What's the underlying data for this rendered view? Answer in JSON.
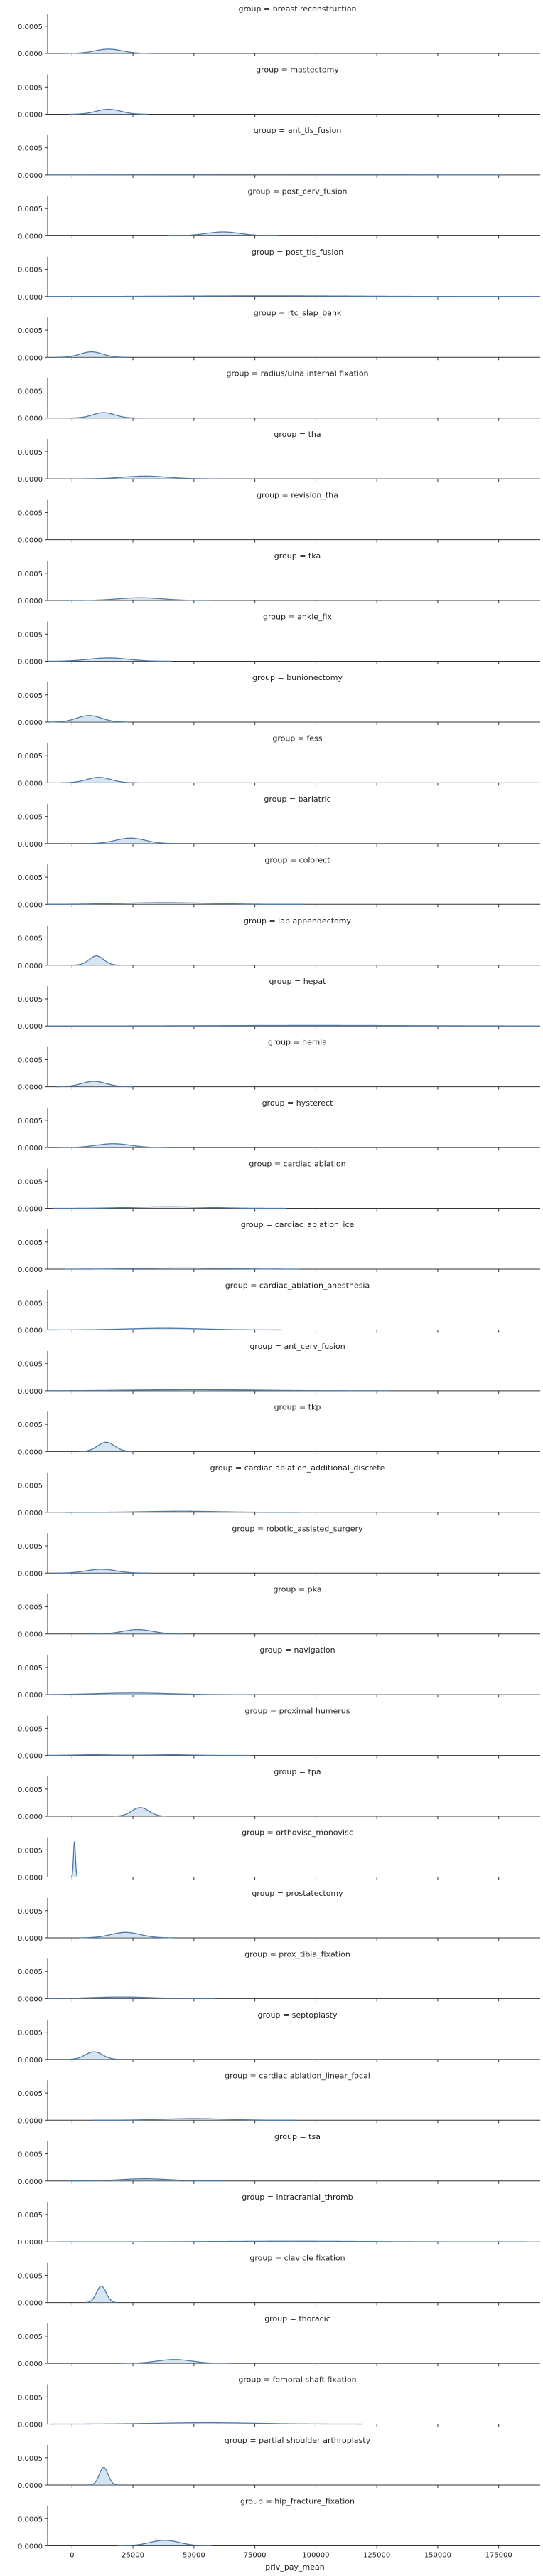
{
  "chart_data": {
    "type": "area",
    "xlabel": "priv_pay_mean",
    "xlim": [
      -10000,
      192000
    ],
    "ylim": [
      0,
      0.00072
    ],
    "x_ticks": [
      0,
      25000,
      50000,
      75000,
      100000,
      125000,
      150000,
      175000
    ],
    "x_tick_labels": [
      "0",
      "25000",
      "50000",
      "75000",
      "100000",
      "125000",
      "150000",
      "175000"
    ],
    "y_ticks": [
      0,
      0.0005
    ],
    "y_tick_labels": [
      "0.0000",
      "0.0005"
    ],
    "line_color": "#4c79a8",
    "fill_color": "#a6c4e3",
    "facets": [
      {
        "title": "group = breast reconstruction",
        "peaks": [
          {
            "mu": 15000,
            "sigma": 5500,
            "h": 8e-05
          }
        ]
      },
      {
        "title": "group = mastectomy",
        "peaks": [
          {
            "mu": 15000,
            "sigma": 5000,
            "h": 9e-05
          }
        ]
      },
      {
        "title": "group = ant_tls_fusion",
        "peaks": [
          {
            "mu": 80000,
            "sigma": 30000,
            "h": 1.5e-05
          }
        ]
      },
      {
        "title": "group = post_cerv_fusion",
        "peaks": [
          {
            "mu": 62000,
            "sigma": 7000,
            "h": 7e-05
          }
        ]
      },
      {
        "title": "group = post_tls_fusion",
        "peaks": [
          {
            "mu": 80000,
            "sigma": 35000,
            "h": 1.2e-05
          }
        ]
      },
      {
        "title": "group = rtc_slap_bank",
        "peaks": [
          {
            "mu": 8000,
            "sigma": 4500,
            "h": 0.0001
          }
        ]
      },
      {
        "title": "group = radius/ulna internal fixation",
        "peaks": [
          {
            "mu": 13000,
            "sigma": 4500,
            "h": 0.0001
          }
        ]
      },
      {
        "title": "group = tha",
        "peaks": [
          {
            "mu": 30000,
            "sigma": 9000,
            "h": 5e-05
          }
        ]
      },
      {
        "title": "group = revision_tha",
        "peaks": []
      },
      {
        "title": "group = tka",
        "peaks": [
          {
            "mu": 28000,
            "sigma": 9000,
            "h": 5e-05
          }
        ]
      },
      {
        "title": "group = ankle_fix",
        "peaks": [
          {
            "mu": 15000,
            "sigma": 8000,
            "h": 6e-05
          }
        ]
      },
      {
        "title": "group = bunionectomy",
        "peaks": [
          {
            "mu": 7000,
            "sigma": 5000,
            "h": 0.00012
          }
        ]
      },
      {
        "title": "group = fess",
        "peaks": [
          {
            "mu": 11000,
            "sigma": 5000,
            "h": 0.0001
          }
        ]
      },
      {
        "title": "group = bariatric",
        "peaks": [
          {
            "mu": 24000,
            "sigma": 6000,
            "h": 0.0001
          }
        ]
      },
      {
        "title": "group = colorect",
        "peaks": [
          {
            "mu": 38000,
            "sigma": 18000,
            "h": 3e-05
          }
        ]
      },
      {
        "title": "group = lap appendectomy",
        "peaks": [
          {
            "mu": 10000,
            "sigma": 3000,
            "h": 0.00017
          }
        ]
      },
      {
        "title": "group = hepat",
        "peaks": [
          {
            "mu": 100000,
            "sigma": 40000,
            "h": 1e-05
          }
        ]
      },
      {
        "title": "group = hernia",
        "peaks": [
          {
            "mu": 9000,
            "sigma": 5000,
            "h": 0.0001
          }
        ]
      },
      {
        "title": "group = hysterect",
        "peaks": [
          {
            "mu": 17000,
            "sigma": 7000,
            "h": 7e-05
          }
        ]
      },
      {
        "title": "group = cardiac ablation",
        "peaks": [
          {
            "mu": 40000,
            "sigma": 15000,
            "h": 3e-05
          }
        ]
      },
      {
        "title": "group = cardiac_ablation_ice",
        "peaks": [
          {
            "mu": 45000,
            "sigma": 15000,
            "h": 2e-05
          }
        ]
      },
      {
        "title": "group = cardiac_ablation_anesthesia",
        "peaks": [
          {
            "mu": 38000,
            "sigma": 15000,
            "h": 3e-05
          }
        ]
      },
      {
        "title": "group = ant_cerv_fusion",
        "peaks": [
          {
            "mu": 50000,
            "sigma": 25000,
            "h": 2e-05
          }
        ]
      },
      {
        "title": "group = tkp",
        "peaks": [
          {
            "mu": 14000,
            "sigma": 3500,
            "h": 0.00017
          }
        ]
      },
      {
        "title": "group = cardiac ablation_additional_discrete",
        "peaks": [
          {
            "mu": 45000,
            "sigma": 15000,
            "h": 2e-05
          }
        ]
      },
      {
        "title": "group = robotic_assisted_surgery",
        "peaks": [
          {
            "mu": 12000,
            "sigma": 6000,
            "h": 7e-05
          }
        ]
      },
      {
        "title": "group = pka",
        "peaks": [
          {
            "mu": 27000,
            "sigma": 6000,
            "h": 8e-05
          }
        ]
      },
      {
        "title": "group = navigation",
        "peaks": [
          {
            "mu": 25000,
            "sigma": 15000,
            "h": 3e-05
          }
        ]
      },
      {
        "title": "group = proximal humerus",
        "peaks": [
          {
            "mu": 25000,
            "sigma": 15000,
            "h": 2.5e-05
          }
        ]
      },
      {
        "title": "group = tpa",
        "peaks": [
          {
            "mu": 28000,
            "sigma": 3500,
            "h": 0.00016
          }
        ]
      },
      {
        "title": "group = orthovisc_monovisc",
        "peaks": [
          {
            "mu": 1000,
            "sigma": 400,
            "h": 0.00065
          }
        ]
      },
      {
        "title": "group = prostatectomy",
        "peaks": [
          {
            "mu": 22000,
            "sigma": 6000,
            "h": 0.0001
          }
        ]
      },
      {
        "title": "group = prox_tibia_fixation",
        "peaks": [
          {
            "mu": 20000,
            "sigma": 12000,
            "h": 3e-05
          }
        ]
      },
      {
        "title": "group = septoplasty",
        "peaks": [
          {
            "mu": 9000,
            "sigma": 3500,
            "h": 0.00014
          }
        ]
      },
      {
        "title": "group = cardiac ablation_linear_focal",
        "peaks": [
          {
            "mu": 50000,
            "sigma": 13000,
            "h": 3e-05
          }
        ]
      },
      {
        "title": "group = tsa",
        "peaks": [
          {
            "mu": 30000,
            "sigma": 10000,
            "h": 4e-05
          }
        ]
      },
      {
        "title": "group = intracranial_thromb",
        "peaks": [
          {
            "mu": 90000,
            "sigma": 30000,
            "h": 1.2e-05
          }
        ]
      },
      {
        "title": "group = clavicle fixation",
        "peaks": [
          {
            "mu": 12000,
            "sigma": 2000,
            "h": 0.0003
          }
        ]
      },
      {
        "title": "group = thoracic",
        "peaks": [
          {
            "mu": 42000,
            "sigma": 7000,
            "h": 7e-05
          }
        ]
      },
      {
        "title": "group = femoral shaft fixation",
        "peaks": [
          {
            "mu": 55000,
            "sigma": 20000,
            "h": 2.5e-05
          }
        ]
      },
      {
        "title": "group = partial shoulder arthroplasty",
        "peaks": [
          {
            "mu": 13000,
            "sigma": 1800,
            "h": 0.00032
          }
        ]
      },
      {
        "title": "group = hip_fracture_fixation",
        "peaks": [
          {
            "mu": 38000,
            "sigma": 6000,
            "h": 0.0001
          }
        ]
      }
    ]
  }
}
